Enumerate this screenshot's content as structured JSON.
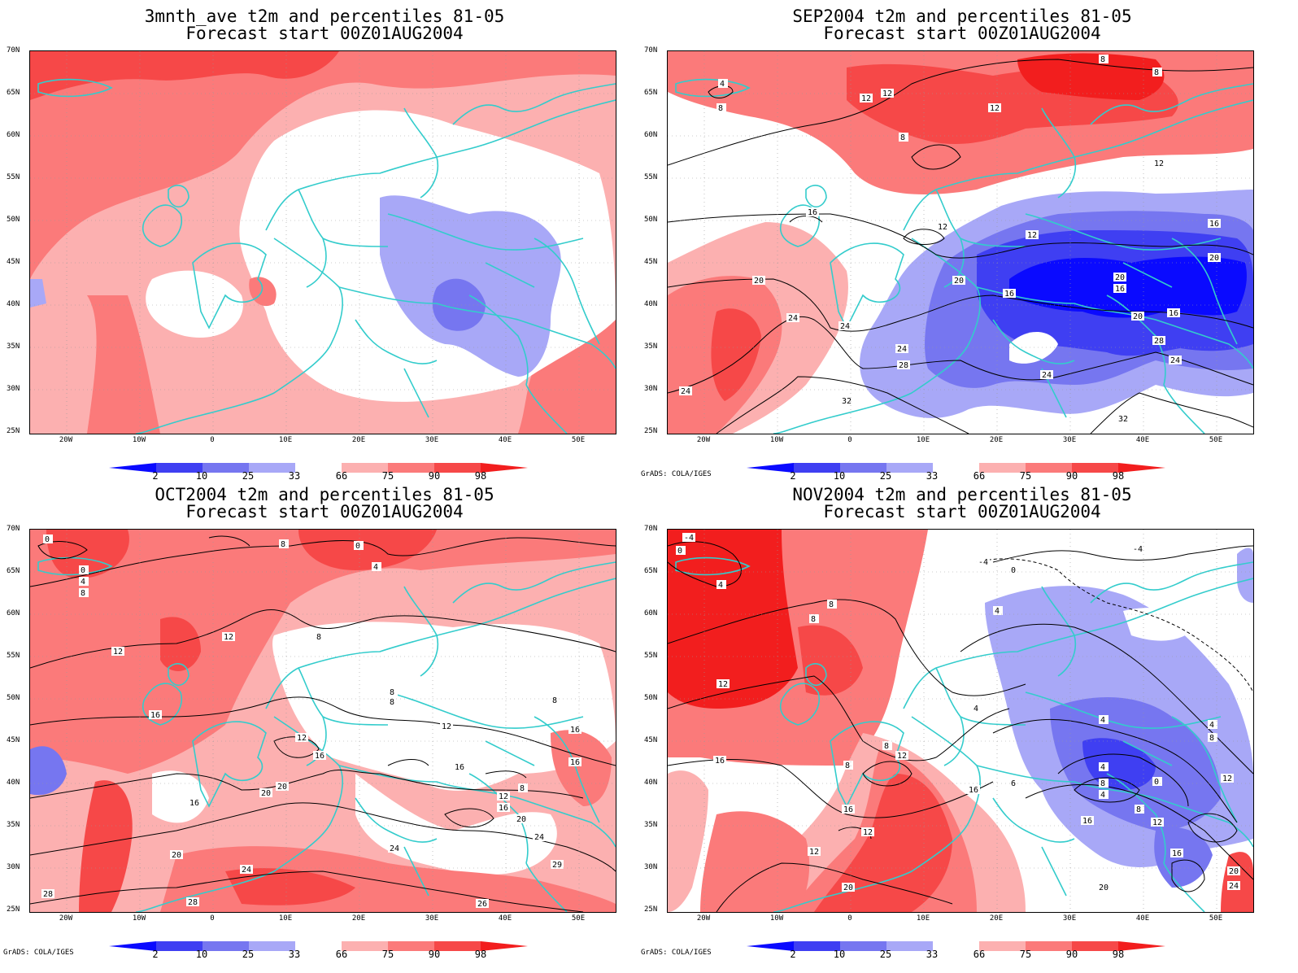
{
  "panels": [
    {
      "title_line1": "3mnth_ave t2m and percentiles 81-05",
      "title_line2": "Forecast start 00Z01AUG2004"
    },
    {
      "title_line1": "SEP2004 t2m and percentiles 81-05",
      "title_line2": "Forecast start 00Z01AUG2004"
    },
    {
      "title_line1": "OCT2004 t2m and percentiles 81-05",
      "title_line2": "Forecast start 00Z01AUG2004"
    },
    {
      "title_line1": "NOV2004 t2m and percentiles 81-05",
      "title_line2": "Forecast start 00Z01AUG2004"
    }
  ],
  "latitude_labels": [
    "70N",
    "65N",
    "60N",
    "55N",
    "50N",
    "45N",
    "40N",
    "35N",
    "30N",
    "25N"
  ],
  "longitude_labels": [
    "20W",
    "10W",
    "0",
    "10E",
    "20E",
    "30E",
    "40E",
    "50E"
  ],
  "colorbar": {
    "labels": [
      "2",
      "10",
      "25",
      "33",
      "66",
      "75",
      "90",
      "98"
    ],
    "colors": [
      "#0a0aff",
      "#3f3ff2",
      "#7676f0",
      "#a8a8f7",
      "#ffffff",
      "#fcb0b0",
      "#fb7a7a",
      "#f64848",
      "#f21e1e"
    ]
  },
  "credit": "GrADS: COLA/IGES",
  "contour_labels": {
    "sep": [
      "4",
      "8",
      "12",
      "12",
      "12",
      "8",
      "8",
      "8",
      "12",
      "16",
      "12",
      "12",
      "16",
      "20",
      "20",
      "16",
      "16",
      "20",
      "20",
      "20",
      "16",
      "24",
      "24",
      "24",
      "28",
      "28",
      "24",
      "32",
      "32",
      "24",
      "24"
    ],
    "oct": [
      "0",
      "0",
      "0",
      "4",
      "8",
      "8",
      "8",
      "4",
      "12",
      "12",
      "8",
      "8",
      "8",
      "16",
      "12",
      "16",
      "16",
      "12",
      "16",
      "20",
      "20",
      "16",
      "16",
      "12",
      "8",
      "16",
      "20",
      "24",
      "20",
      "24",
      "24",
      "28",
      "28",
      "26",
      "29"
    ],
    "nov": [
      "-4",
      "0",
      "4",
      "-4",
      "-4",
      "0",
      "4",
      "8",
      "8",
      "12",
      "4",
      "4",
      "8",
      "8",
      "12",
      "16",
      "4",
      "8",
      "4",
      "8",
      "4",
      "0",
      "12",
      "6",
      "16",
      "16",
      "12",
      "12",
      "16",
      "12",
      "8",
      "16",
      "20",
      "20",
      "20",
      "24"
    ]
  }
}
